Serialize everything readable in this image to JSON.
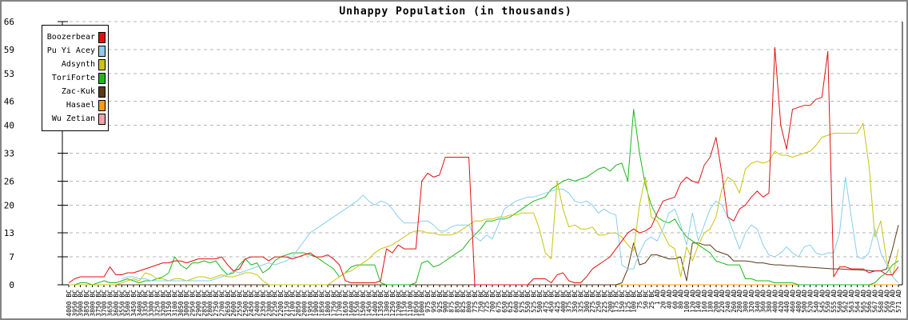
{
  "window": {
    "border_color": "#848484",
    "background": "#ffffff"
  },
  "chart_data": {
    "type": "line",
    "title": "Unhappy Population (in thousands)",
    "xlabel": "",
    "ylabel": "",
    "ylim": [
      0,
      66
    ],
    "y_ticks": [
      0,
      7,
      13,
      20,
      26,
      33,
      40,
      46,
      53,
      59,
      66
    ],
    "grid": "horizontal dashed gray",
    "grid_color": "#b5b5b5",
    "axis_color": "#000000",
    "legend_position": "top-left",
    "x_tick_rotation": -90,
    "x_labels": [
      "4000 BC",
      "3950 BC",
      "3900 BC",
      "3850 BC",
      "3800 BC",
      "3750 BC",
      "3700 BC",
      "3650 BC",
      "3600 BC",
      "3550 BC",
      "3500 BC",
      "3450 BC",
      "3400 BC",
      "3350 BC",
      "3300 BC",
      "3250 BC",
      "3200 BC",
      "3150 BC",
      "3100 BC",
      "3050 BC",
      "3000 BC",
      "2950 BC",
      "2900 BC",
      "2850 BC",
      "2800 BC",
      "2750 BC",
      "2700 BC",
      "2650 BC",
      "2600 BC",
      "2550 BC",
      "2500 BC",
      "2450 BC",
      "2400 BC",
      "2350 BC",
      "2300 BC",
      "2250 BC",
      "2200 BC",
      "2150 BC",
      "2100 BC",
      "2050 BC",
      "2000 BC",
      "1950 BC",
      "1900 BC",
      "1850 BC",
      "1800 BC",
      "1750 BC",
      "1700 BC",
      "1650 BC",
      "1600 BC",
      "1550 BC",
      "1500 BC",
      "1450 BC",
      "1400 BC",
      "1350 BC",
      "1300 BC",
      "1250 BC",
      "1200 BC",
      "1150 BC",
      "1100 BC",
      "1050 BC",
      "1000 BC",
      "975 BC",
      "950 BC",
      "925 BC",
      "900 BC",
      "875 BC",
      "850 BC",
      "825 BC",
      "800 BC",
      "775 BC",
      "750 BC",
      "725 BC",
      "700 BC",
      "675 BC",
      "650 BC",
      "625 BC",
      "600 BC",
      "575 BC",
      "550 BC",
      "525 BC",
      "500 BC",
      "475 BC",
      "450 BC",
      "425 BC",
      "400 BC",
      "375 BC",
      "350 BC",
      "325 BC",
      "300 BC",
      "275 BC",
      "250 BC",
      "225 BC",
      "200 BC",
      "175 BC",
      "150 BC",
      "125 BC",
      "100 BC",
      "75 BC",
      "50 BC",
      "25 BC",
      "1 AD",
      "20 AD",
      "40 AD",
      "60 AD",
      "80 AD",
      "100 AD",
      "120 AD",
      "140 AD",
      "160 AD",
      "180 AD",
      "200 AD",
      "220 AD",
      "240 AD",
      "260 AD",
      "280 AD",
      "300 AD",
      "320 AD",
      "340 AD",
      "360 AD",
      "380 AD",
      "400 AD",
      "420 AD",
      "440 AD",
      "460 AD",
      "480 AD",
      "500 AD",
      "520 AD",
      "540 AD",
      "545 AD",
      "550 AD",
      "555 AD",
      "560 AD",
      "562 AD",
      "563 AD",
      "564 AD",
      "565 AD",
      "566 AD",
      "567 AD",
      "568 AD",
      "569 AD",
      "570 AD",
      "571 AD"
    ],
    "series": [
      {
        "name": "Boozerbear",
        "color": "#e01010",
        "values": [
          0.5,
          1.5,
          2,
          2,
          2,
          2,
          2,
          4.5,
          2.5,
          2.5,
          3,
          3,
          3.5,
          4,
          4.5,
          5,
          5.5,
          5.5,
          6,
          6,
          5.5,
          6,
          6.5,
          6.5,
          6.5,
          6.5,
          7,
          5,
          3.5,
          4,
          6.5,
          7,
          7,
          7,
          6,
          7,
          7,
          7,
          6.5,
          7,
          7.5,
          8,
          7,
          7,
          7.5,
          6.5,
          5,
          1,
          0.5,
          0.5,
          0.5,
          0.5,
          0.5,
          1,
          9,
          8,
          10,
          9,
          9,
          9,
          26,
          28,
          27,
          27.5,
          32,
          32,
          32,
          32,
          32,
          0,
          0,
          0,
          0,
          0,
          0,
          0,
          0,
          0,
          0,
          1.5,
          1.5,
          1.5,
          0.5,
          2.5,
          3,
          1,
          0.5,
          0.5,
          2,
          4,
          5,
          6,
          7,
          9,
          11,
          13,
          14,
          13,
          13.5,
          14.5,
          18,
          21,
          21.5,
          22,
          25.5,
          27,
          26,
          25.5,
          30,
          32,
          37,
          28,
          17,
          16,
          19,
          20,
          22,
          23.5,
          22,
          23,
          59.5,
          40,
          34,
          44,
          44.5,
          45,
          45,
          46.5,
          47,
          58.5,
          2,
          4.5,
          4.5,
          4,
          4,
          4,
          3,
          3.5,
          3.5,
          2.5,
          2.5,
          4.5
        ]
      },
      {
        "name": "Pu Yi Acey",
        "color": "#87ceeb",
        "values": [
          null,
          null,
          null,
          null,
          null,
          null,
          null,
          null,
          null,
          1.5,
          2,
          2,
          1.5,
          1.5,
          1,
          1,
          1,
          1,
          1,
          1,
          1,
          1,
          1,
          1,
          1,
          1.5,
          2,
          2.5,
          3.5,
          3,
          3.5,
          4,
          4.5,
          5,
          5.5,
          5,
          5.5,
          6,
          7,
          9,
          11,
          13,
          14,
          15,
          16,
          17,
          18,
          19,
          20,
          21,
          22.5,
          21,
          20,
          21,
          20.5,
          19,
          17,
          15.5,
          15.5,
          15.5,
          16,
          16,
          15,
          13.5,
          13.5,
          14.5,
          15,
          15,
          15,
          12,
          11,
          12.5,
          11.5,
          15,
          19,
          20,
          21,
          21.5,
          22,
          22,
          22.5,
          23,
          23.5,
          24,
          24,
          23,
          21,
          20.5,
          21,
          20,
          18,
          19,
          18,
          17.5,
          5,
          4,
          4,
          8,
          11,
          12,
          11,
          14,
          18,
          19,
          15,
          10,
          18,
          11,
          15,
          19,
          21,
          20,
          17,
          13,
          9,
          13,
          15,
          14,
          10,
          7.5,
          7,
          8,
          9.5,
          8,
          7,
          9.5,
          10,
          8,
          7.5,
          8,
          8,
          13,
          27,
          17,
          7,
          6.5,
          8,
          14,
          8,
          5,
          2,
          0.5
        ]
      },
      {
        "name": "Adsynth",
        "color": "#c9c40e",
        "values": [
          0,
          0,
          0,
          0,
          0,
          0,
          0,
          0,
          0,
          0.5,
          1,
          1.5,
          1,
          3,
          2.5,
          1.5,
          1.5,
          1,
          1.5,
          1.5,
          1,
          1.5,
          2,
          2,
          1.5,
          2,
          2.5,
          2,
          2,
          2.5,
          3,
          3,
          2.5,
          1,
          0,
          0,
          0,
          0,
          0,
          0,
          0,
          0,
          0,
          0,
          0,
          1,
          2,
          3,
          3.5,
          4.5,
          5.5,
          6.5,
          8,
          9,
          9.5,
          10,
          11,
          12,
          13,
          13.5,
          13.5,
          13,
          13,
          12.5,
          12.5,
          12.5,
          13,
          14,
          15,
          16,
          16,
          16.5,
          16.5,
          17,
          17,
          17.5,
          17.5,
          18,
          18,
          18,
          14,
          8,
          6.5,
          26,
          19,
          14.5,
          15,
          14,
          14,
          14.5,
          12.5,
          12.5,
          13,
          13,
          12,
          10,
          8.5,
          20,
          27,
          17,
          16,
          13,
          10,
          9,
          2,
          9.5,
          6,
          10,
          13,
          14,
          17,
          24,
          27,
          26,
          23,
          29,
          30.5,
          31,
          30.5,
          31,
          33.5,
          32.5,
          32.5,
          32,
          32.5,
          33,
          33.5,
          35,
          37,
          37.5,
          38,
          38,
          38,
          38,
          38,
          40.5,
          30,
          12,
          16,
          6,
          2,
          9
        ]
      },
      {
        "name": "ToriForte",
        "color": "#1cb81c",
        "values": [
          0,
          0,
          0.5,
          0.5,
          0,
          0.5,
          1,
          0.5,
          0.5,
          1,
          1.5,
          1,
          0.5,
          1,
          1,
          1.5,
          2,
          3,
          7,
          5,
          4,
          5.5,
          5.5,
          6,
          5.5,
          6,
          4,
          2.5,
          3,
          5,
          6.5,
          5,
          5.5,
          3,
          4,
          6,
          7,
          7.5,
          8,
          8,
          8,
          7.5,
          7,
          6,
          5,
          4,
          2,
          3,
          4.5,
          5,
          5,
          5,
          5,
          0.5,
          0,
          0,
          0,
          0,
          0,
          0.5,
          5.5,
          6,
          4.5,
          5,
          6,
          7,
          8,
          9,
          11,
          12.5,
          14,
          16,
          16,
          16.5,
          16.5,
          17,
          18,
          19,
          20,
          21,
          21.5,
          22,
          24,
          25,
          26,
          26.5,
          26,
          26.5,
          27,
          28,
          29,
          29.5,
          28.5,
          30,
          30.5,
          26,
          44,
          33,
          25,
          20,
          17,
          16,
          15.5,
          16.5,
          14,
          12,
          11,
          10,
          9,
          8,
          6,
          5.5,
          5,
          5,
          5,
          1.5,
          1.5,
          1,
          1,
          1,
          0.5,
          0.5,
          0.5,
          0.5,
          0,
          0,
          0,
          0,
          0,
          0,
          0,
          0,
          0,
          0,
          0,
          0,
          0,
          0.5,
          2,
          3,
          5,
          6
        ]
      },
      {
        "name": "Zac-Kuk",
        "color": "#5c3a15",
        "values": [
          0,
          0,
          0,
          0,
          0,
          0,
          0,
          0,
          0,
          0,
          0,
          0,
          0,
          0,
          0,
          0,
          0,
          0,
          0,
          0,
          0,
          0,
          0,
          0,
          0,
          0,
          0,
          0,
          0,
          0,
          0,
          0,
          0,
          0,
          0,
          0,
          0,
          0,
          0,
          0,
          0,
          0,
          0,
          0,
          0,
          0,
          0,
          0,
          0,
          0,
          0,
          0,
          0,
          0,
          0,
          0,
          0,
          0,
          0,
          0,
          0,
          0,
          0,
          0,
          0,
          0,
          0,
          0,
          0,
          0,
          0,
          0,
          0,
          0,
          0,
          0,
          0,
          0,
          0,
          0,
          0,
          0,
          0,
          0,
          0,
          0,
          0,
          0,
          0,
          0,
          0,
          0,
          0,
          0,
          0.5,
          4,
          10.5,
          5,
          5.5,
          7.5,
          7.5,
          7,
          6.5,
          6.5,
          7,
          1,
          10.5,
          10.5,
          10,
          10,
          8.5,
          8,
          7.5,
          6,
          6,
          6,
          5.8,
          5.5,
          5.5,
          5.2,
          5,
          5,
          4.8,
          4.8,
          4.6,
          4.5,
          4.4,
          4.3,
          4.2,
          4.1,
          4,
          4,
          3.9,
          3.8,
          3.8,
          3.7,
          3.6,
          3.5,
          3.5,
          4,
          9,
          15
        ]
      },
      {
        "name": "Hasael",
        "color": "#ff9d0a",
        "values": [
          0,
          0,
          0,
          0,
          0,
          0,
          0,
          0,
          0,
          0,
          0,
          0,
          0,
          0,
          0,
          0,
          0,
          0,
          0,
          0,
          0,
          0,
          0,
          0,
          0,
          0,
          0,
          0,
          0,
          0,
          0,
          0,
          0,
          0,
          0,
          0,
          0,
          0,
          0,
          0,
          0,
          0,
          0,
          0,
          0,
          0,
          0,
          0,
          0,
          0,
          0,
          0,
          0,
          0,
          0,
          0,
          0,
          0,
          0,
          0,
          0,
          0,
          0,
          0,
          0,
          0,
          0,
          0,
          0,
          0,
          0,
          0,
          0,
          0,
          0,
          0,
          0,
          0,
          0,
          0,
          0,
          0,
          0,
          0,
          0,
          0,
          0,
          0,
          0,
          0,
          0,
          0,
          0,
          0,
          0,
          0,
          0,
          0,
          0,
          0,
          0,
          0,
          0,
          0,
          0,
          0,
          0,
          0,
          0,
          0,
          0,
          0,
          0,
          0,
          0,
          0,
          0,
          0,
          0,
          0,
          0,
          0,
          0,
          0,
          0,
          0,
          0,
          0,
          0,
          0,
          0,
          0,
          0,
          0,
          0,
          0,
          0,
          0,
          0,
          0,
          0,
          0
        ]
      },
      {
        "name": "Wu Zetian",
        "color": "#f2a0aa",
        "values": [
          0,
          0,
          0,
          0,
          0,
          0,
          0,
          0,
          0,
          0,
          0,
          0,
          0,
          0,
          0,
          0,
          0,
          0,
          0,
          0,
          0,
          0,
          0,
          0,
          0,
          0,
          0,
          0,
          0,
          0,
          0,
          0,
          0,
          0,
          0,
          0,
          0,
          0,
          0,
          0,
          0,
          0,
          0,
          0,
          0,
          0,
          0,
          0,
          0,
          0,
          0,
          0,
          0,
          0,
          0,
          0,
          0,
          0,
          0,
          0,
          0,
          0,
          0,
          0,
          0,
          0,
          0,
          0,
          0,
          0,
          0,
          0,
          0,
          0,
          0,
          0,
          0,
          0,
          0,
          0,
          0,
          0,
          0,
          0,
          0,
          0,
          0,
          0,
          0,
          0,
          0,
          0,
          0,
          0,
          0,
          0,
          0,
          0,
          0,
          0,
          0,
          0,
          0,
          0,
          0,
          0,
          0,
          0,
          0,
          0,
          0,
          0,
          0,
          0,
          0,
          0,
          0,
          0,
          0,
          0,
          0,
          0,
          0,
          0,
          0,
          0,
          0,
          0,
          0,
          0,
          0,
          0,
          0,
          0,
          0,
          0,
          0,
          0,
          0,
          0,
          0,
          0
        ]
      }
    ]
  }
}
